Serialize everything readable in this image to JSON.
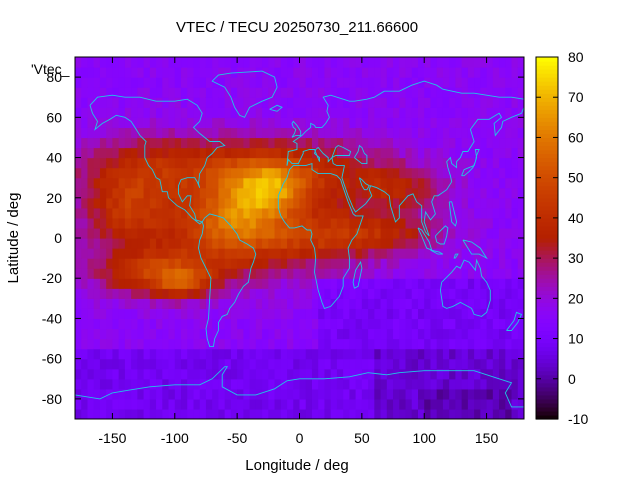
{
  "chart_data": {
    "type": "heatmap",
    "title": "VTEC / TECU 20250730_211.66600",
    "xlabel": "Longitude / deg",
    "ylabel": "Latitude / deg",
    "corner_label": "'Vtec_",
    "xlim": [
      -180,
      180
    ],
    "ylim": [
      -90,
      90
    ],
    "xticks": [
      -150,
      -100,
      -50,
      0,
      50,
      100,
      150
    ],
    "yticks": [
      -80,
      -60,
      -40,
      -20,
      0,
      20,
      40,
      60,
      80
    ],
    "colorbar": {
      "min": -10,
      "max": 80,
      "ticks": [
        -10,
        0,
        10,
        20,
        30,
        40,
        50,
        60,
        70,
        80
      ],
      "colormap": "gnuplot pm3d 7,5,15 (black-blue-purple-red-orange-yellow)"
    },
    "grid_resolution_deg": [
      5,
      5
    ],
    "coastline_color": "#1ec8e6",
    "features": [
      {
        "name": "equatorial anomaly maximum",
        "lon_range": [
          -60,
          10
        ],
        "lat_range": [
          5,
          30
        ],
        "approx_vtec": 70
      },
      {
        "name": "southern crest",
        "lon_range": [
          -140,
          -90
        ],
        "lat_range": [
          -30,
          -10
        ],
        "approx_vtec": 60
      },
      {
        "name": "northern mid-latitude band",
        "lon_range": [
          -140,
          100
        ],
        "lat_range": [
          20,
          50
        ],
        "approx_vtec": 40
      },
      {
        "name": "background high latitudes",
        "approx_vtec": 15
      },
      {
        "name": "southern hemisphere night side",
        "lon_range": [
          20,
          180
        ],
        "lat_range": [
          -90,
          -20
        ],
        "approx_vtec": 8
      }
    ]
  }
}
